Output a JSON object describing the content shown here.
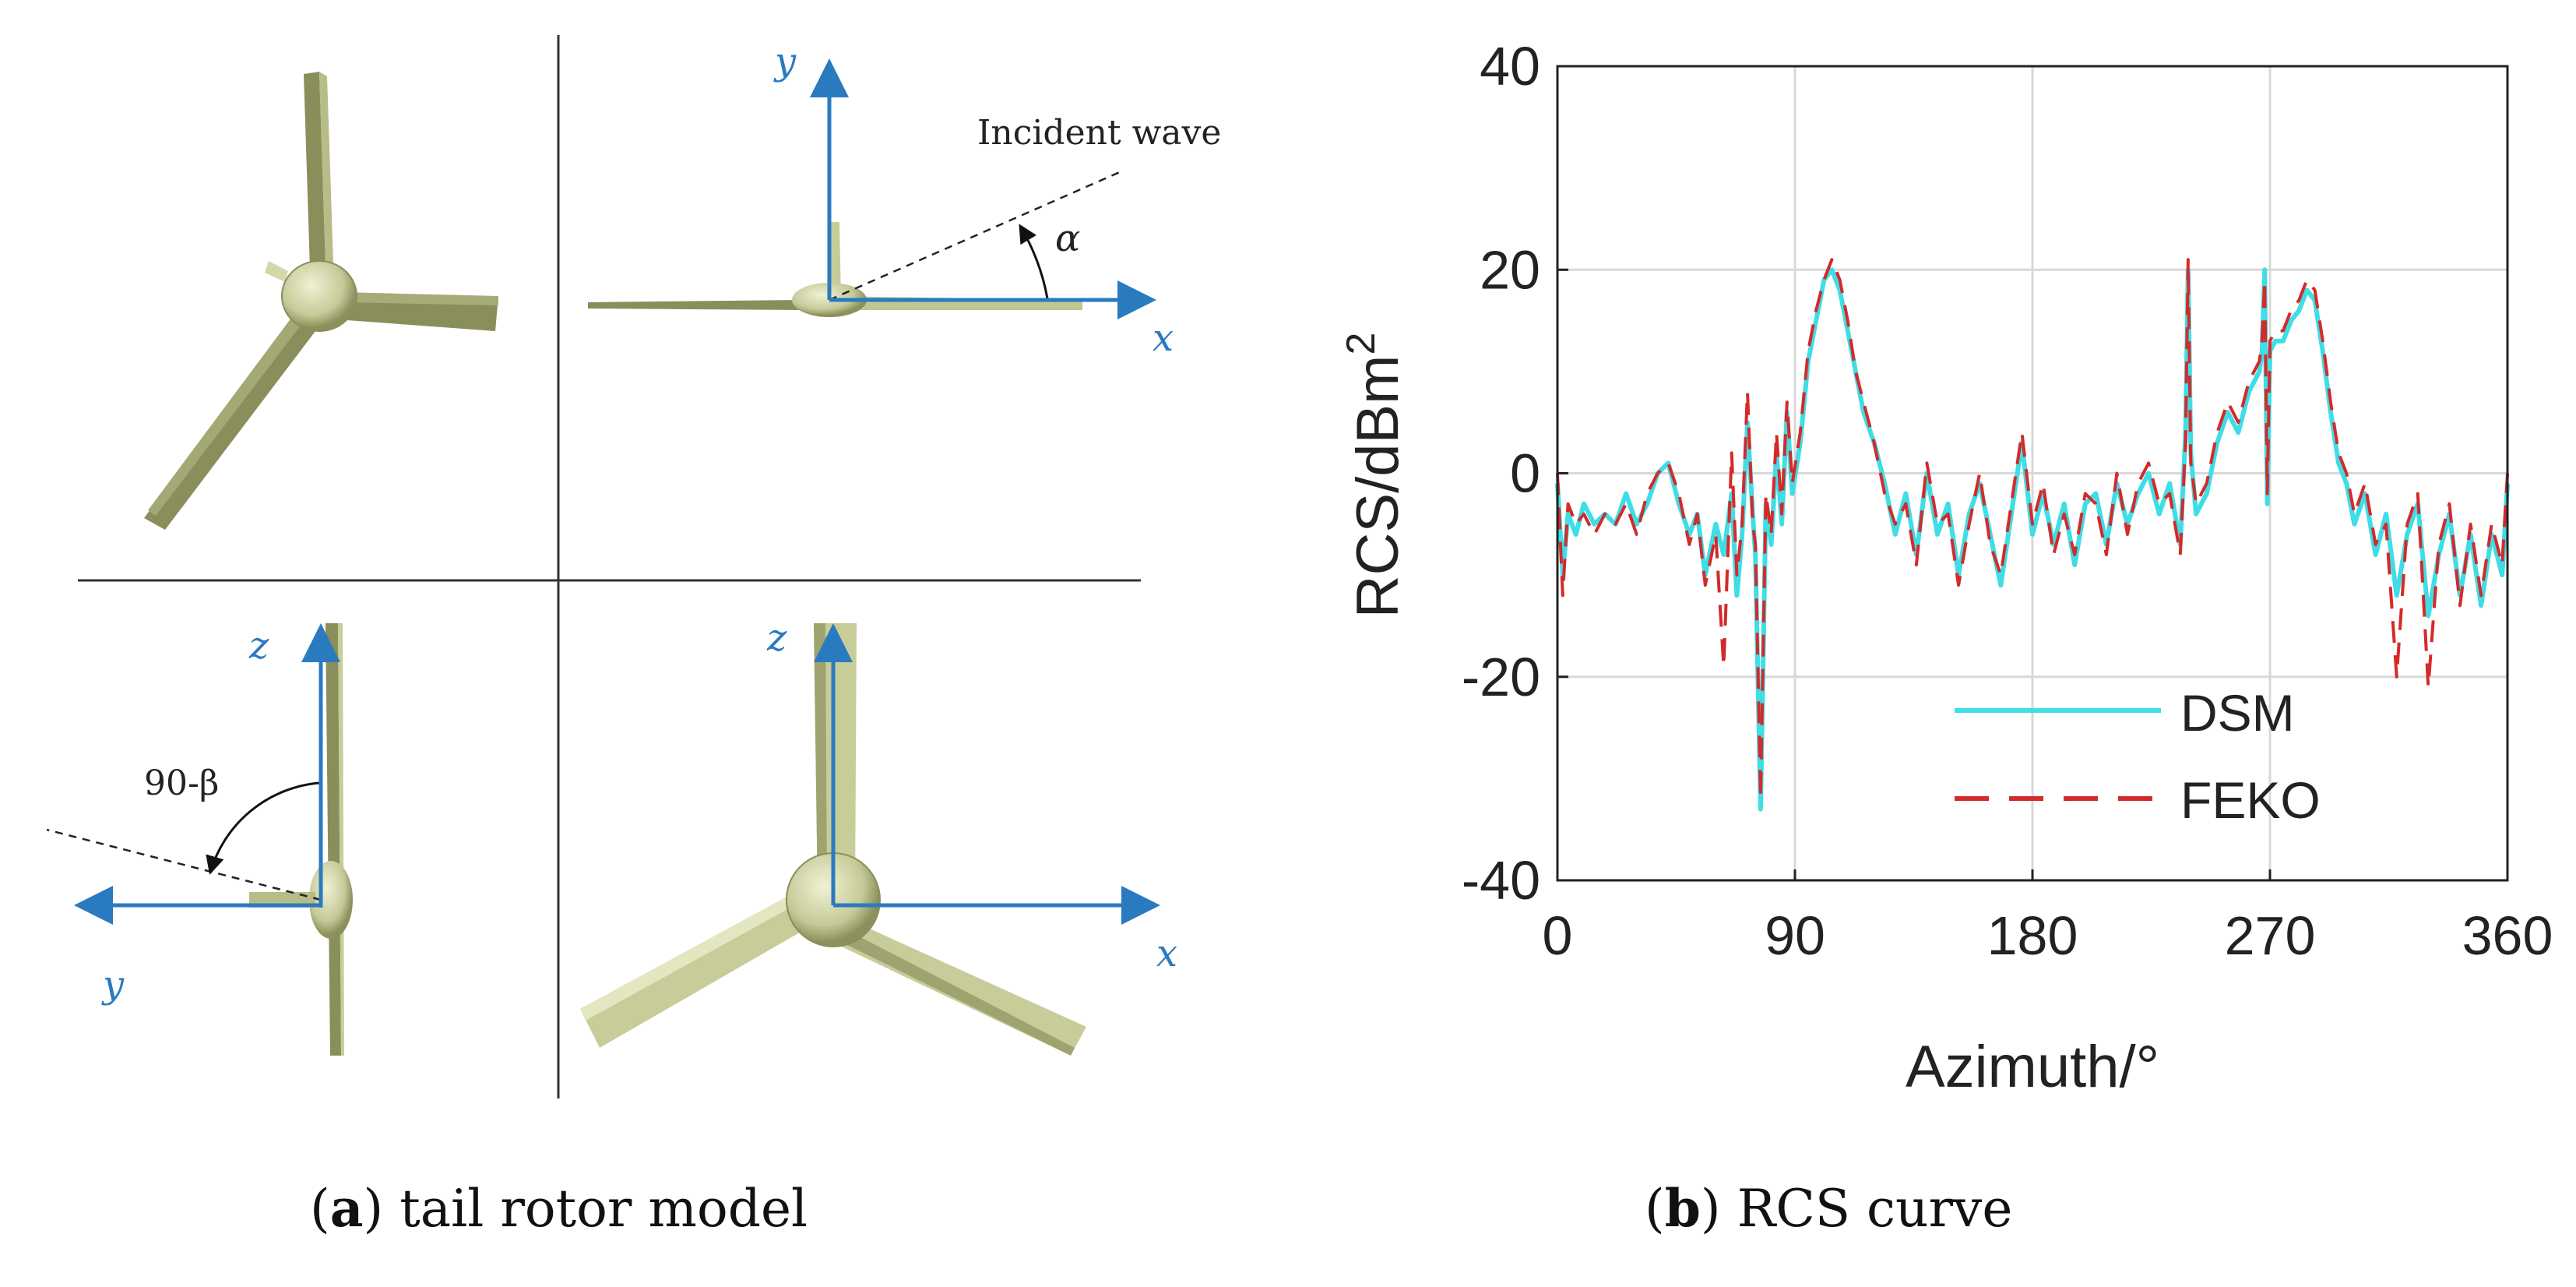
{
  "panel_a": {
    "caption_letter": "a",
    "caption_text": "tail rotor model",
    "labels": {
      "incident_wave": "Incident wave",
      "alpha": "α",
      "angle_label": "90-β",
      "y_top": "y",
      "x_top": "x",
      "z_left": "z",
      "y_left": "y",
      "z_right": "z",
      "x_right": "x"
    },
    "colors": {
      "axis": "#2a7ac0",
      "rotor": "#c8cc98",
      "rotor_dark": "#8a8e5a"
    }
  },
  "panel_b": {
    "caption_letter": "b",
    "caption_text": "RCS curve"
  },
  "chart_data": {
    "type": "line",
    "title": "",
    "xlabel": "Azimuth/°",
    "ylabel": "RCS/dBm",
    "ylabel_superscript": "2",
    "xlim": [
      0,
      360
    ],
    "ylim": [
      -40,
      40
    ],
    "xticks": [
      "0",
      "90",
      "180",
      "270",
      "360"
    ],
    "yticks": [
      "-40",
      "-20",
      "0",
      "20",
      "40"
    ],
    "grid": true,
    "legend_position": "bottom-right",
    "series": [
      {
        "name": "DSM",
        "color": "#3fdde6",
        "dash": "solid",
        "x": [
          0,
          2,
          4,
          7,
          10,
          14,
          18,
          22,
          26,
          30,
          34,
          38,
          42,
          46,
          50,
          53,
          56,
          60,
          63,
          66,
          68,
          70,
          72,
          74,
          75,
          77,
          79,
          81,
          83,
          85,
          87,
          89,
          92,
          95,
          98,
          101,
          104,
          107,
          110,
          113,
          116,
          120,
          124,
          128,
          132,
          136,
          140,
          144,
          148,
          152,
          156,
          160,
          164,
          168,
          172,
          176,
          180,
          184,
          188,
          192,
          196,
          200,
          204,
          208,
          212,
          216,
          220,
          224,
          228,
          232,
          236,
          238,
          239,
          240,
          242,
          246,
          250,
          254,
          258,
          262,
          266,
          267,
          268,
          269,
          270,
          272,
          275,
          278,
          281,
          284,
          287,
          290,
          293,
          296,
          299,
          302,
          306,
          310,
          314,
          318,
          322,
          326,
          330,
          334,
          338,
          342,
          346,
          350,
          354,
          358,
          360
        ],
        "y": [
          -1,
          -10,
          -4,
          -6,
          -3,
          -5,
          -4,
          -5,
          -2,
          -5,
          -3,
          0,
          1,
          -3,
          -6,
          -4,
          -10,
          -5,
          -8,
          -2,
          -12,
          -6,
          5,
          -4,
          -8,
          -33,
          -3,
          -7,
          2,
          -5,
          6,
          -2,
          3,
          11,
          15,
          19,
          20,
          18,
          14,
          10,
          6,
          3,
          -1,
          -6,
          -2,
          -8,
          0,
          -6,
          -3,
          -10,
          -4,
          -1,
          -6,
          -11,
          -4,
          3,
          -6,
          -2,
          -7,
          -3,
          -9,
          -3,
          -2,
          -7,
          -1,
          -5,
          -2,
          0,
          -4,
          -1,
          -7,
          4,
          20,
          2,
          -4,
          -2,
          3,
          6,
          4,
          8,
          10,
          12,
          20,
          -3,
          12,
          13,
          13,
          15,
          16,
          18,
          17,
          12,
          6,
          1,
          -1,
          -5,
          -2,
          -8,
          -4,
          -12,
          -6,
          -3,
          -14,
          -8,
          -4,
          -12,
          -6,
          -13,
          -6,
          -10,
          -1
        ]
      },
      {
        "name": "FEKO",
        "color": "#d42a2a",
        "dash": "dashed",
        "x": [
          0,
          2,
          4,
          7,
          10,
          14,
          18,
          22,
          26,
          30,
          34,
          38,
          42,
          46,
          50,
          53,
          56,
          60,
          63,
          66,
          68,
          70,
          72,
          74,
          75,
          77,
          79,
          81,
          83,
          85,
          87,
          89,
          92,
          95,
          98,
          101,
          104,
          107,
          110,
          113,
          116,
          120,
          124,
          128,
          132,
          136,
          140,
          144,
          148,
          152,
          156,
          160,
          164,
          168,
          172,
          176,
          180,
          184,
          188,
          192,
          196,
          200,
          204,
          208,
          212,
          216,
          220,
          224,
          228,
          232,
          236,
          238,
          239,
          240,
          242,
          246,
          250,
          254,
          258,
          262,
          266,
          267,
          268,
          269,
          270,
          272,
          275,
          278,
          281,
          284,
          287,
          290,
          293,
          296,
          299,
          302,
          306,
          310,
          314,
          318,
          322,
          326,
          330,
          334,
          338,
          342,
          346,
          350,
          354,
          358,
          360
        ],
        "y": [
          0,
          -12,
          -3,
          -5,
          -4,
          -6,
          -4,
          -5,
          -3,
          -6,
          -2,
          0,
          1,
          -2,
          -7,
          -4,
          -11,
          -6,
          -19,
          2,
          -10,
          -5,
          8,
          -5,
          -7,
          -32,
          -2,
          -6,
          4,
          -4,
          7,
          -1,
          4,
          12,
          16,
          19,
          21,
          19,
          15,
          10,
          7,
          3,
          -2,
          -5,
          -3,
          -9,
          1,
          -5,
          -4,
          -11,
          -5,
          0,
          -7,
          -10,
          -3,
          4,
          -5,
          -1,
          -8,
          -4,
          -8,
          -2,
          -3,
          -8,
          0,
          -6,
          -1,
          1,
          -3,
          -2,
          -8,
          3,
          21,
          1,
          -3,
          -1,
          4,
          7,
          5,
          9,
          11,
          13,
          19,
          -2,
          13,
          14,
          14,
          16,
          17,
          19,
          18,
          13,
          7,
          2,
          0,
          -4,
          -1,
          -7,
          -5,
          -20,
          -5,
          -2,
          -21,
          -7,
          -3,
          -13,
          -5,
          -12,
          -5,
          -9,
          0
        ]
      }
    ]
  }
}
